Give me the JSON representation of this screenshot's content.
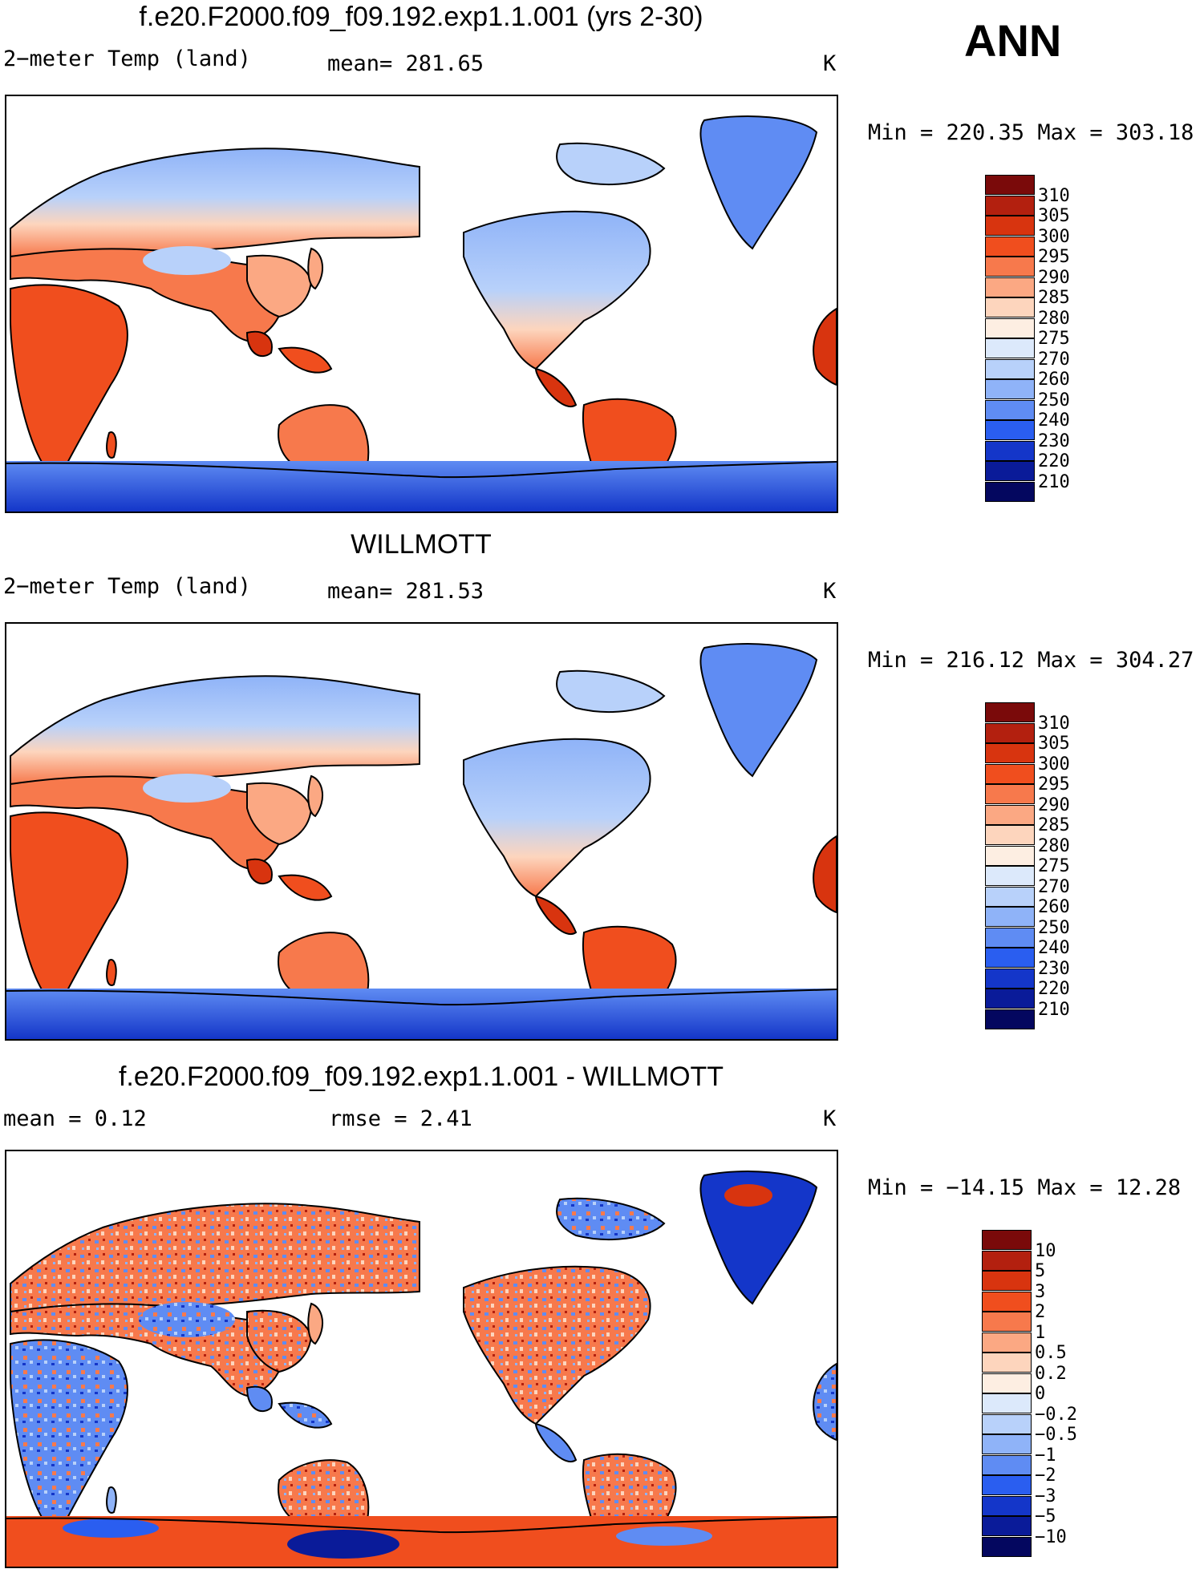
{
  "season": "ANN",
  "panels": [
    {
      "title": "f.e20.F2000.f09_f09.192.exp1.1.001 (yrs 2-30)",
      "var_label": "2−meter Temp (land)",
      "stat_text": "mean=  281.65",
      "stat2_text": "",
      "units": "K",
      "minmax": "Min  =  220.35 Max  =  303.18",
      "colorbar": {
        "labels": [
          "310",
          "305",
          "300",
          "295",
          "290",
          "285",
          "280",
          "275",
          "270",
          "260",
          "250",
          "240",
          "230",
          "220",
          "210"
        ],
        "colors": [
          "#7a0a0a",
          "#b3200f",
          "#d8340f",
          "#f04e1e",
          "#f7794c",
          "#fba883",
          "#fdd5bd",
          "#fdeee2",
          "#dce9fb",
          "#b8d1fa",
          "#8fb3f8",
          "#5f8cf3",
          "#2a5ef0",
          "#1436c9",
          "#0a1b99",
          "#04075f"
        ]
      },
      "map_type": "abs"
    },
    {
      "title": "WILLMOTT",
      "var_label": "2−meter Temp (land)",
      "stat_text": "mean=  281.53",
      "stat2_text": "",
      "units": "K",
      "minmax": "Min  =  216.12 Max  =  304.27",
      "colorbar": {
        "labels": [
          "310",
          "305",
          "300",
          "295",
          "290",
          "285",
          "280",
          "275",
          "270",
          "260",
          "250",
          "240",
          "230",
          "220",
          "210"
        ],
        "colors": [
          "#7a0a0a",
          "#b3200f",
          "#d8340f",
          "#f04e1e",
          "#f7794c",
          "#fba883",
          "#fdd5bd",
          "#fdeee2",
          "#dce9fb",
          "#b8d1fa",
          "#8fb3f8",
          "#5f8cf3",
          "#2a5ef0",
          "#1436c9",
          "#0a1b99",
          "#04075f"
        ]
      },
      "map_type": "abs"
    },
    {
      "title": "f.e20.F2000.f09_f09.192.exp1.1.001 - WILLMOTT",
      "var_label": "mean  =     0.12",
      "stat_text": "",
      "stat2_text": "rmse  =     2.41",
      "units": "K",
      "minmax": "Min  = −14.15 Max  =    12.28",
      "colorbar": {
        "labels": [
          "10",
          "5",
          "3",
          "2",
          "1",
          "0.5",
          "0.2",
          "0",
          "−0.2",
          "−0.5",
          "−1",
          "−2",
          "−3",
          "−5",
          "−10"
        ],
        "colors": [
          "#7a0a0a",
          "#b3200f",
          "#d8340f",
          "#f04e1e",
          "#f7794c",
          "#fba883",
          "#fdd5bd",
          "#fdeee2",
          "#dce9fb",
          "#b8d1fa",
          "#8fb3f8",
          "#5f8cf3",
          "#2a5ef0",
          "#1436c9",
          "#0a1b99",
          "#04075f"
        ]
      },
      "map_type": "diff"
    }
  ]
}
